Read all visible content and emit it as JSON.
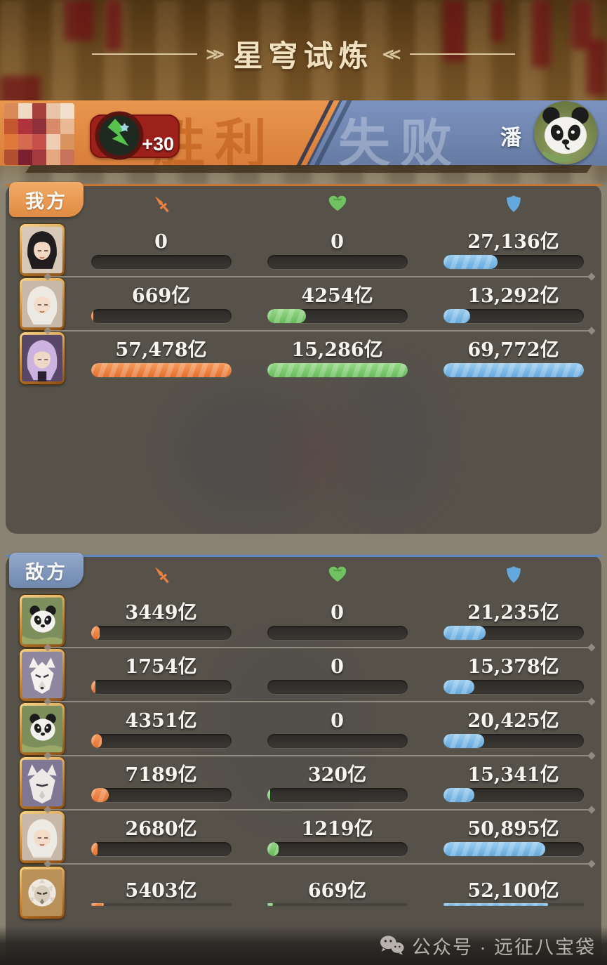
{
  "title": {
    "text": "星穹试炼"
  },
  "banner": {
    "victory_label": "胜利",
    "defeat_label": "失败",
    "score_bonus": "+30",
    "opponent_name": "潘",
    "ally_color": "#e08a42",
    "enemy_color": "#7089b8",
    "left_avatar": "censored-mosaic",
    "right_avatar": "panda"
  },
  "columns": [
    {
      "name": "damage",
      "icon": "sword-icon",
      "color": "#e4702f",
      "color_light": "#f49a5d"
    },
    {
      "name": "healing",
      "icon": "heart-icon",
      "color": "#66bb58",
      "color_light": "#97d88a"
    },
    {
      "name": "damage-taken",
      "icon": "shield-icon",
      "color": "#64a9dd",
      "color_light": "#9ccdef"
    }
  ],
  "unit": "亿",
  "ally_panel": {
    "tab": "我方",
    "rows": [
      {
        "avatar": "dark-hair-woman",
        "stats": [
          {
            "text": "0",
            "pct": 0
          },
          {
            "text": "0",
            "pct": 0
          },
          {
            "text": "27,136亿",
            "pct": 38.9
          }
        ]
      },
      {
        "avatar": "white-hair-woman",
        "stats": [
          {
            "text": "669亿",
            "pct": 1.2
          },
          {
            "text": "4254亿",
            "pct": 27.8
          },
          {
            "text": "13,292亿",
            "pct": 19.1
          }
        ]
      },
      {
        "avatar": "purple-hair-woman",
        "stats": [
          {
            "text": "57,478亿",
            "pct": 100
          },
          {
            "text": "15,286亿",
            "pct": 100
          },
          {
            "text": "69,772亿",
            "pct": 100
          }
        ]
      }
    ]
  },
  "enemy_panel": {
    "tab": "敌方",
    "rows": [
      {
        "avatar": "panda",
        "stats": [
          {
            "text": "3449亿",
            "pct": 6.0
          },
          {
            "text": "0",
            "pct": 0
          },
          {
            "text": "21,235亿",
            "pct": 30.4
          }
        ]
      },
      {
        "avatar": "white-fox",
        "stats": [
          {
            "text": "1754亿",
            "pct": 3.1
          },
          {
            "text": "0",
            "pct": 0
          },
          {
            "text": "15,378亿",
            "pct": 22.0
          }
        ]
      },
      {
        "avatar": "panda",
        "stats": [
          {
            "text": "4351亿",
            "pct": 7.6
          },
          {
            "text": "0",
            "pct": 0
          },
          {
            "text": "20,425亿",
            "pct": 29.3
          }
        ]
      },
      {
        "avatar": "white-wolf",
        "stats": [
          {
            "text": "7189亿",
            "pct": 12.5
          },
          {
            "text": "320亿",
            "pct": 2.1
          },
          {
            "text": "15,341亿",
            "pct": 22.0
          }
        ]
      },
      {
        "avatar": "white-hair-woman",
        "stats": [
          {
            "text": "2680亿",
            "pct": 4.7
          },
          {
            "text": "1219亿",
            "pct": 8.0
          },
          {
            "text": "50,895亿",
            "pct": 72.9
          }
        ]
      },
      {
        "avatar": "white-lion",
        "thin": true,
        "stats": [
          {
            "text": "5403亿",
            "pct": 9.4
          },
          {
            "text": "669亿",
            "pct": 4.4
          },
          {
            "text": "52,100亿",
            "pct": 74.7
          }
        ]
      }
    ]
  },
  "watermark": {
    "icon": "wechat-icon",
    "label": "公众号 · 远征八宝袋"
  }
}
